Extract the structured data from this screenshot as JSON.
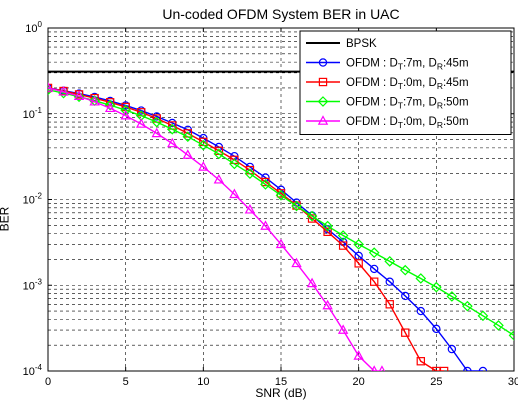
{
  "chart_data": {
    "type": "line",
    "title": "Un-coded OFDM System BER in UAC",
    "xlabel": "SNR (dB)",
    "ylabel": "BER",
    "xlim": [
      0,
      30
    ],
    "ylim": [
      0.0001,
      1
    ],
    "yscale": "log",
    "xticks": [
      0,
      5,
      10,
      15,
      20,
      25,
      30
    ],
    "yticks": [
      {
        "value": 1,
        "base": "10",
        "exp": "0"
      },
      {
        "value": 0.1,
        "base": "10",
        "exp": "-1"
      },
      {
        "value": 0.01,
        "base": "10",
        "exp": "-2"
      },
      {
        "value": 0.001,
        "base": "10",
        "exp": "-3"
      },
      {
        "value": 0.0001,
        "base": "10",
        "exp": "-4"
      }
    ],
    "grid": true,
    "legend_position": "top-right",
    "series": [
      {
        "name": "BPSK",
        "legend_parts": [
          [
            "BPSK",
            null
          ]
        ],
        "color": "#000000",
        "marker": "none",
        "x": [
          0,
          30
        ],
        "y": [
          0.31,
          0.31
        ]
      },
      {
        "name": "OFDM : DT:7m, DR:45m",
        "legend_parts": [
          [
            "OFDM : D",
            null
          ],
          [
            "T",
            "sub"
          ],
          [
            ":7m, D",
            null
          ],
          [
            "R",
            "sub"
          ],
          [
            ":45m",
            null
          ]
        ],
        "color": "#0000ff",
        "marker": "circle",
        "x": [
          0,
          1,
          2,
          3,
          4,
          5,
          6,
          7,
          8,
          9,
          10,
          11,
          12,
          13,
          14,
          15,
          16,
          17,
          18,
          19,
          20,
          21,
          22,
          23,
          24,
          25,
          26,
          27,
          28
        ],
        "y": [
          0.2,
          0.186,
          0.172,
          0.157,
          0.141,
          0.125,
          0.109,
          0.093,
          0.078,
          0.065,
          0.052,
          0.041,
          0.032,
          0.024,
          0.018,
          0.013,
          0.0092,
          0.0065,
          0.0045,
          0.0032,
          0.0022,
          0.00155,
          0.0011,
          0.00075,
          0.0005,
          0.00031,
          0.00018,
          0.0001,
          0.0001
        ]
      },
      {
        "name": "OFDM : DT:0m, DR:45m",
        "legend_parts": [
          [
            "OFDM : D",
            null
          ],
          [
            "T",
            "sub"
          ],
          [
            ":0m, D",
            null
          ],
          [
            "R",
            "sub"
          ],
          [
            ":45m",
            null
          ]
        ],
        "color": "#ff0000",
        "marker": "square",
        "x": [
          0,
          1,
          2,
          3,
          4,
          5,
          6,
          7,
          8,
          9,
          10,
          11,
          12,
          13,
          14,
          15,
          16,
          17,
          18,
          19,
          20,
          21,
          22,
          23,
          24,
          25,
          25.5
        ],
        "y": [
          0.2,
          0.184,
          0.168,
          0.152,
          0.136,
          0.12,
          0.104,
          0.088,
          0.073,
          0.059,
          0.047,
          0.037,
          0.029,
          0.022,
          0.016,
          0.0118,
          0.0085,
          0.006,
          0.0042,
          0.0029,
          0.0018,
          0.0011,
          0.0006,
          0.00028,
          0.00013,
          0.0001,
          0.0001
        ]
      },
      {
        "name": "OFDM : DT:7m, DR:50m",
        "legend_parts": [
          [
            "OFDM : D",
            null
          ],
          [
            "T",
            "sub"
          ],
          [
            ":7m, D",
            null
          ],
          [
            "R",
            "sub"
          ],
          [
            ":50m",
            null
          ]
        ],
        "color": "#00ff00",
        "marker": "diamond",
        "x": [
          0,
          1,
          2,
          3,
          4,
          5,
          6,
          7,
          8,
          9,
          10,
          11,
          12,
          13,
          14,
          15,
          16,
          17,
          18,
          19,
          20,
          21,
          22,
          23,
          24,
          25,
          26,
          27,
          28,
          29,
          30
        ],
        "y": [
          0.19,
          0.174,
          0.158,
          0.142,
          0.126,
          0.11,
          0.095,
          0.08,
          0.066,
          0.054,
          0.043,
          0.034,
          0.026,
          0.02,
          0.015,
          0.0112,
          0.0084,
          0.0064,
          0.0049,
          0.0038,
          0.003,
          0.0024,
          0.0019,
          0.0015,
          0.0012,
          0.00095,
          0.00074,
          0.00057,
          0.00044,
          0.00034,
          0.00026
        ]
      },
      {
        "name": "OFDM : DT:0m, DR:50m",
        "legend_parts": [
          [
            "OFDM : D",
            null
          ],
          [
            "T",
            "sub"
          ],
          [
            ":0m, D",
            null
          ],
          [
            "R",
            "sub"
          ],
          [
            ":50m",
            null
          ]
        ],
        "color": "#ff00ff",
        "marker": "triangle",
        "x": [
          0,
          1,
          2,
          3,
          4,
          5,
          6,
          7,
          8,
          9,
          10,
          11,
          12,
          13,
          14,
          15,
          16,
          17,
          18,
          19,
          20,
          21,
          21.5
        ],
        "y": [
          0.2,
          0.18,
          0.16,
          0.138,
          0.116,
          0.095,
          0.076,
          0.059,
          0.045,
          0.033,
          0.024,
          0.017,
          0.0115,
          0.0076,
          0.0049,
          0.003,
          0.0018,
          0.00105,
          0.00058,
          0.0003,
          0.00015,
          0.0001,
          0.0001
        ]
      }
    ]
  }
}
